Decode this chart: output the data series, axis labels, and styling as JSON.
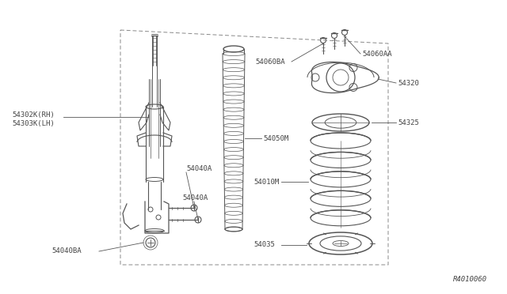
{
  "bg_color": "#ffffff",
  "c": "#555555",
  "lc": "#555555",
  "tc": "#444444",
  "ref_number": "R4010060",
  "figsize": [
    6.4,
    3.72
  ],
  "dpi": 100,
  "labels": {
    "54302K_RH": "54302K(RH)",
    "54303K_LH": "54303K(LH)",
    "54040A_top": "54040A",
    "54040A_bot": "54040A",
    "54040BA": "54040BA",
    "54050M": "54050M",
    "54060BA": "54060BA",
    "54060AA": "54060AA",
    "54320": "54320",
    "54325": "54325",
    "54010M": "54010M",
    "54035": "54035"
  }
}
